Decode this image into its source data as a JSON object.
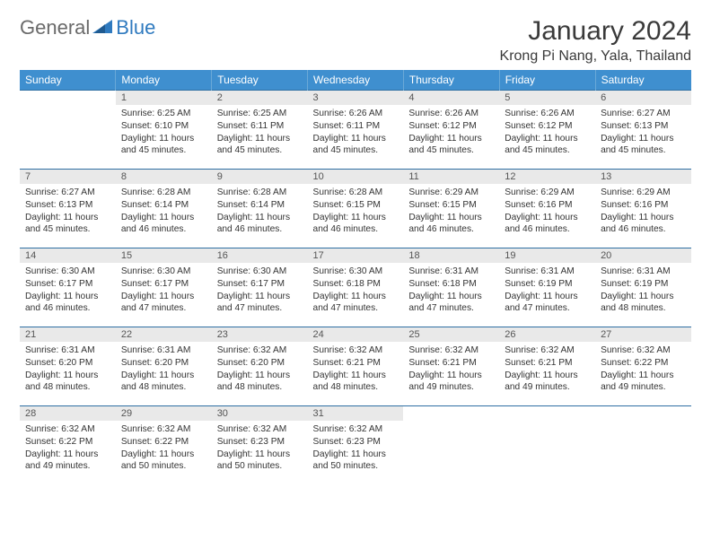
{
  "logo": {
    "general": "General",
    "blue": "Blue"
  },
  "title": "January 2024",
  "location": "Krong Pi Nang, Yala, Thailand",
  "colors": {
    "header_bg": "#3f8fcf",
    "header_text": "#ffffff",
    "daynum_bg": "#e9e9e9",
    "row_border": "#2f6fa3",
    "logo_gray": "#6a6a6a",
    "logo_blue": "#2f7abf"
  },
  "weekdays": [
    "Sunday",
    "Monday",
    "Tuesday",
    "Wednesday",
    "Thursday",
    "Friday",
    "Saturday"
  ],
  "start_offset": 1,
  "days": [
    {
      "n": 1,
      "sunrise": "6:25 AM",
      "sunset": "6:10 PM",
      "dl_h": 11,
      "dl_m": 45
    },
    {
      "n": 2,
      "sunrise": "6:25 AM",
      "sunset": "6:11 PM",
      "dl_h": 11,
      "dl_m": 45
    },
    {
      "n": 3,
      "sunrise": "6:26 AM",
      "sunset": "6:11 PM",
      "dl_h": 11,
      "dl_m": 45
    },
    {
      "n": 4,
      "sunrise": "6:26 AM",
      "sunset": "6:12 PM",
      "dl_h": 11,
      "dl_m": 45
    },
    {
      "n": 5,
      "sunrise": "6:26 AM",
      "sunset": "6:12 PM",
      "dl_h": 11,
      "dl_m": 45
    },
    {
      "n": 6,
      "sunrise": "6:27 AM",
      "sunset": "6:13 PM",
      "dl_h": 11,
      "dl_m": 45
    },
    {
      "n": 7,
      "sunrise": "6:27 AM",
      "sunset": "6:13 PM",
      "dl_h": 11,
      "dl_m": 45
    },
    {
      "n": 8,
      "sunrise": "6:28 AM",
      "sunset": "6:14 PM",
      "dl_h": 11,
      "dl_m": 46
    },
    {
      "n": 9,
      "sunrise": "6:28 AM",
      "sunset": "6:14 PM",
      "dl_h": 11,
      "dl_m": 46
    },
    {
      "n": 10,
      "sunrise": "6:28 AM",
      "sunset": "6:15 PM",
      "dl_h": 11,
      "dl_m": 46
    },
    {
      "n": 11,
      "sunrise": "6:29 AM",
      "sunset": "6:15 PM",
      "dl_h": 11,
      "dl_m": 46
    },
    {
      "n": 12,
      "sunrise": "6:29 AM",
      "sunset": "6:16 PM",
      "dl_h": 11,
      "dl_m": 46
    },
    {
      "n": 13,
      "sunrise": "6:29 AM",
      "sunset": "6:16 PM",
      "dl_h": 11,
      "dl_m": 46
    },
    {
      "n": 14,
      "sunrise": "6:30 AM",
      "sunset": "6:17 PM",
      "dl_h": 11,
      "dl_m": 46
    },
    {
      "n": 15,
      "sunrise": "6:30 AM",
      "sunset": "6:17 PM",
      "dl_h": 11,
      "dl_m": 47
    },
    {
      "n": 16,
      "sunrise": "6:30 AM",
      "sunset": "6:17 PM",
      "dl_h": 11,
      "dl_m": 47
    },
    {
      "n": 17,
      "sunrise": "6:30 AM",
      "sunset": "6:18 PM",
      "dl_h": 11,
      "dl_m": 47
    },
    {
      "n": 18,
      "sunrise": "6:31 AM",
      "sunset": "6:18 PM",
      "dl_h": 11,
      "dl_m": 47
    },
    {
      "n": 19,
      "sunrise": "6:31 AM",
      "sunset": "6:19 PM",
      "dl_h": 11,
      "dl_m": 47
    },
    {
      "n": 20,
      "sunrise": "6:31 AM",
      "sunset": "6:19 PM",
      "dl_h": 11,
      "dl_m": 48
    },
    {
      "n": 21,
      "sunrise": "6:31 AM",
      "sunset": "6:20 PM",
      "dl_h": 11,
      "dl_m": 48
    },
    {
      "n": 22,
      "sunrise": "6:31 AM",
      "sunset": "6:20 PM",
      "dl_h": 11,
      "dl_m": 48
    },
    {
      "n": 23,
      "sunrise": "6:32 AM",
      "sunset": "6:20 PM",
      "dl_h": 11,
      "dl_m": 48
    },
    {
      "n": 24,
      "sunrise": "6:32 AM",
      "sunset": "6:21 PM",
      "dl_h": 11,
      "dl_m": 48
    },
    {
      "n": 25,
      "sunrise": "6:32 AM",
      "sunset": "6:21 PM",
      "dl_h": 11,
      "dl_m": 49
    },
    {
      "n": 26,
      "sunrise": "6:32 AM",
      "sunset": "6:21 PM",
      "dl_h": 11,
      "dl_m": 49
    },
    {
      "n": 27,
      "sunrise": "6:32 AM",
      "sunset": "6:22 PM",
      "dl_h": 11,
      "dl_m": 49
    },
    {
      "n": 28,
      "sunrise": "6:32 AM",
      "sunset": "6:22 PM",
      "dl_h": 11,
      "dl_m": 49
    },
    {
      "n": 29,
      "sunrise": "6:32 AM",
      "sunset": "6:22 PM",
      "dl_h": 11,
      "dl_m": 50
    },
    {
      "n": 30,
      "sunrise": "6:32 AM",
      "sunset": "6:23 PM",
      "dl_h": 11,
      "dl_m": 50
    },
    {
      "n": 31,
      "sunrise": "6:32 AM",
      "sunset": "6:23 PM",
      "dl_h": 11,
      "dl_m": 50
    }
  ],
  "labels": {
    "sunrise": "Sunrise:",
    "sunset": "Sunset:",
    "daylight": "Daylight:",
    "hours": "hours",
    "and": "and",
    "minutes": "minutes."
  }
}
